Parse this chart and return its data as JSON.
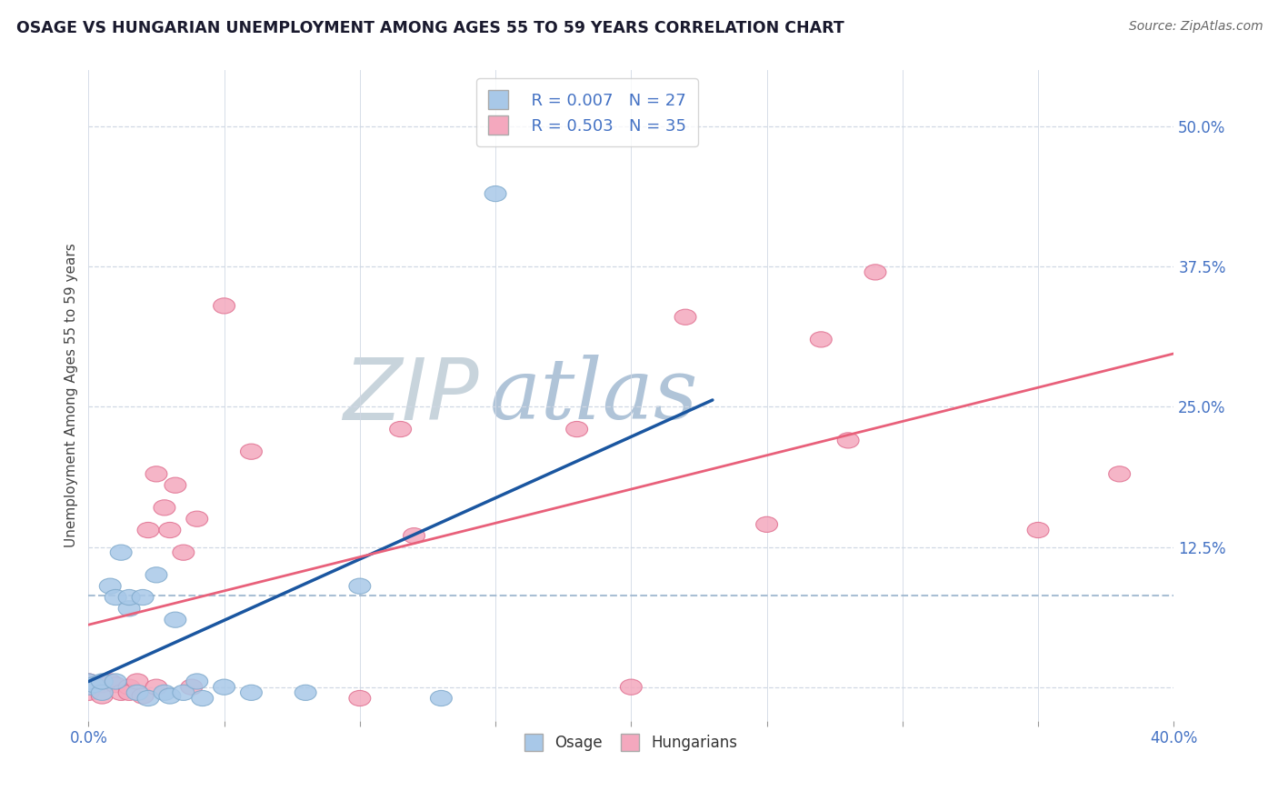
{
  "title": "OSAGE VS HUNGARIAN UNEMPLOYMENT AMONG AGES 55 TO 59 YEARS CORRELATION CHART",
  "source": "Source: ZipAtlas.com",
  "ylabel": "Unemployment Among Ages 55 to 59 years",
  "xlim": [
    0.0,
    0.4
  ],
  "ylim": [
    -0.03,
    0.55
  ],
  "xticks": [
    0.0,
    0.05,
    0.1,
    0.15,
    0.2,
    0.25,
    0.3,
    0.35,
    0.4
  ],
  "yticks_right": [
    0.0,
    0.125,
    0.25,
    0.375,
    0.5
  ],
  "yticklabels_right": [
    "",
    "12.5%",
    "25.0%",
    "37.5%",
    "50.0%"
  ],
  "legend_r1": "R = 0.007",
  "legend_n1": "N = 27",
  "legend_r2": "R = 0.503",
  "legend_n2": "N = 35",
  "osage_color": "#a8c8e8",
  "hungarian_color": "#f4a8be",
  "osage_edge_color": "#80aacc",
  "hungarian_edge_color": "#e07090",
  "osage_line_color": "#1a56a0",
  "hungarian_line_color": "#e8607a",
  "dashed_line_color": "#a0b8d0",
  "watermark_zip_color": "#c8d4dc",
  "watermark_atlas_color": "#b0c4d8",
  "background_color": "#ffffff",
  "grid_color": "#d0d8e4",
  "osage_x": [
    0.0,
    0.0,
    0.002,
    0.005,
    0.005,
    0.008,
    0.01,
    0.01,
    0.012,
    0.015,
    0.015,
    0.018,
    0.02,
    0.022,
    0.025,
    0.028,
    0.03,
    0.032,
    0.035,
    0.04,
    0.042,
    0.05,
    0.06,
    0.08,
    0.1,
    0.13,
    0.15
  ],
  "osage_y": [
    0.0,
    0.005,
    0.002,
    -0.005,
    0.005,
    0.09,
    0.08,
    0.005,
    0.12,
    0.07,
    0.08,
    -0.005,
    0.08,
    -0.01,
    0.1,
    -0.005,
    -0.008,
    0.06,
    -0.005,
    0.005,
    -0.01,
    0.0,
    -0.005,
    -0.005,
    0.09,
    -0.01,
    0.44
  ],
  "hungarian_x": [
    0.0,
    0.0,
    0.0,
    0.005,
    0.005,
    0.008,
    0.01,
    0.012,
    0.015,
    0.015,
    0.018,
    0.02,
    0.022,
    0.025,
    0.025,
    0.028,
    0.03,
    0.032,
    0.035,
    0.038,
    0.04,
    0.05,
    0.06,
    0.1,
    0.115,
    0.12,
    0.18,
    0.2,
    0.22,
    0.25,
    0.27,
    0.28,
    0.29,
    0.35,
    0.38
  ],
  "hungarian_y": [
    0.0,
    0.005,
    -0.005,
    0.002,
    -0.008,
    0.005,
    0.002,
    -0.005,
    0.0,
    -0.005,
    0.005,
    -0.008,
    0.14,
    0.19,
    0.0,
    0.16,
    0.14,
    0.18,
    0.12,
    0.0,
    0.15,
    0.34,
    0.21,
    -0.01,
    0.23,
    0.135,
    0.23,
    0.0,
    0.33,
    0.145,
    0.31,
    0.22,
    0.37,
    0.14,
    0.19
  ],
  "osage_line_x_end": 0.23,
  "dashed_line_y": 0.082
}
